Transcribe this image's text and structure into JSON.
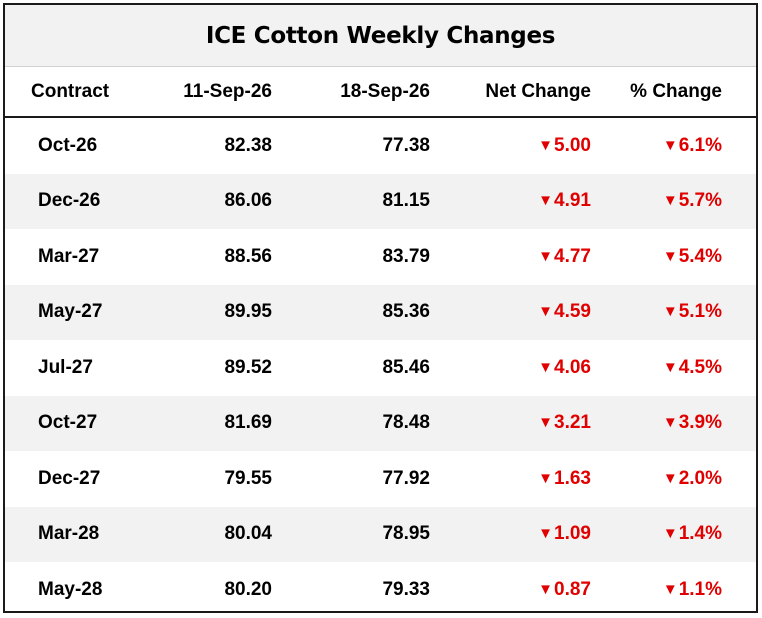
{
  "table": {
    "title": "ICE Cotton Weekly Changes",
    "headers": [
      "Contract",
      "11-Sep-26",
      "18-Sep-26",
      "Net Change",
      "% Change"
    ],
    "down_arrow_icon": "triangle-down",
    "negative_color": "#e00000",
    "rows": [
      {
        "contract": "Oct-26",
        "prev": "82.38",
        "curr": "77.38",
        "net": "5.00",
        "pct": "6.1%"
      },
      {
        "contract": "Dec-26",
        "prev": "86.06",
        "curr": "81.15",
        "net": "4.91",
        "pct": "5.7%"
      },
      {
        "contract": "Mar-27",
        "prev": "88.56",
        "curr": "83.79",
        "net": "4.77",
        "pct": "5.4%"
      },
      {
        "contract": "May-27",
        "prev": "89.95",
        "curr": "85.36",
        "net": "4.59",
        "pct": "5.1%"
      },
      {
        "contract": "Jul-27",
        "prev": "89.52",
        "curr": "85.46",
        "net": "4.06",
        "pct": "4.5%"
      },
      {
        "contract": "Oct-27",
        "prev": "81.69",
        "curr": "78.48",
        "net": "3.21",
        "pct": "3.9%"
      },
      {
        "contract": "Dec-27",
        "prev": "79.55",
        "curr": "77.92",
        "net": "1.63",
        "pct": "2.0%"
      },
      {
        "contract": "Mar-28",
        "prev": "80.04",
        "curr": "78.95",
        "net": "1.09",
        "pct": "1.4%"
      },
      {
        "contract": "May-28",
        "prev": "80.20",
        "curr": "79.33",
        "net": "0.87",
        "pct": "1.1%"
      }
    ]
  }
}
